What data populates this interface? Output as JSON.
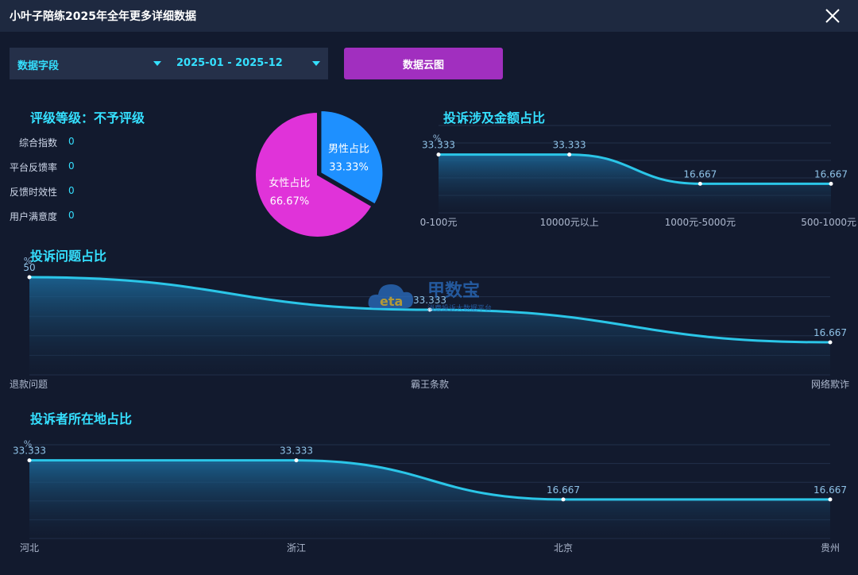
{
  "window": {
    "title": "小叶子陪练2025年全年更多详细数据"
  },
  "filters": {
    "field_label": "数据字段",
    "date_range": "2025-01 - 2025-12",
    "cloud_button": "数据云图"
  },
  "rating": {
    "title": "评级等级：不予评级",
    "metrics": [
      {
        "label": "综合指数",
        "value": "0"
      },
      {
        "label": "平台反馈率",
        "value": "0"
      },
      {
        "label": "反馈时效性",
        "value": "0"
      },
      {
        "label": "用户满意度",
        "value": "0"
      }
    ]
  },
  "colors": {
    "accent": "#35e0ff",
    "male": "#1e90ff",
    "female": "#e033d9",
    "line": "#2bc6e8",
    "button": "#a12fbf"
  },
  "icons": {
    "close": "close-icon",
    "dropdown": "caret-down-icon"
  },
  "watermark": {
    "text": "甲数宝",
    "subtext": "消费投诉大数据平台"
  },
  "chart_data": [
    {
      "type": "pie",
      "title": "",
      "slices": [
        {
          "name": "男性占比",
          "value": 33.33,
          "label": "33.33%"
        },
        {
          "name": "女性占比",
          "value": 66.67,
          "label": "66.67%"
        }
      ]
    },
    {
      "type": "area",
      "title": "投诉涉及金额占比",
      "ylabel": "%",
      "categories": [
        "0-100元",
        "10000元以上",
        "1000元-5000元",
        "500-1000元"
      ],
      "values": [
        33.333,
        33.333,
        16.667,
        16.667
      ]
    },
    {
      "type": "area",
      "title": "投诉问题占比",
      "ylabel": "%",
      "categories": [
        "退款问题",
        "霸王条款",
        "网络欺诈"
      ],
      "values": [
        50,
        33.333,
        16.667
      ]
    },
    {
      "type": "area",
      "title": "投诉者所在地占比",
      "ylabel": "%",
      "categories": [
        "河北",
        "浙江",
        "北京",
        "贵州"
      ],
      "values": [
        33.333,
        33.333,
        16.667,
        16.667
      ]
    }
  ]
}
